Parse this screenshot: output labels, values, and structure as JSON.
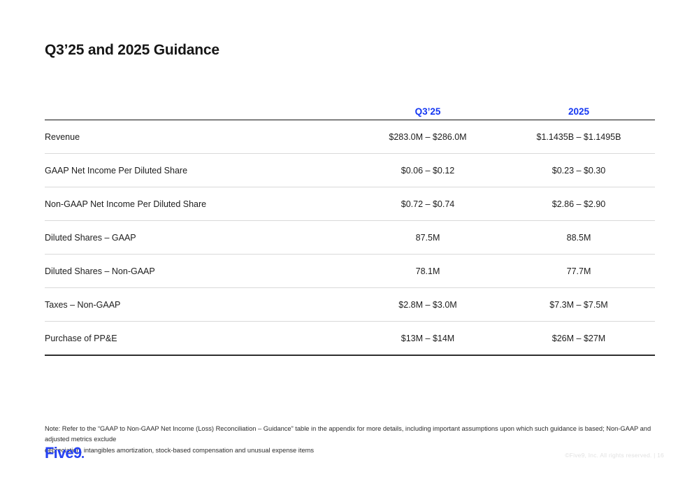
{
  "slide": {
    "title": "Q3’25 and 2025 Guidance",
    "table": {
      "columns": [
        "Q3’25",
        "2025"
      ],
      "rows": [
        {
          "label": "Revenue",
          "q3": "$283.0M – $286.0M",
          "fy": "$1.1435B – $1.1495B"
        },
        {
          "label": "GAAP Net Income Per Diluted Share",
          "q3": "$0.06 – $0.12",
          "fy": "$0.23 – $0.30"
        },
        {
          "label": "Non-GAAP Net Income Per Diluted Share",
          "q3": "$0.72 – $0.74",
          "fy": "$2.86 – $2.90"
        },
        {
          "label": "Diluted Shares – GAAP",
          "q3": "87.5M",
          "fy": "88.5M"
        },
        {
          "label": "Diluted Shares – Non-GAAP",
          "q3": "78.1M",
          "fy": "77.7M"
        },
        {
          "label": "Taxes – Non-GAAP",
          "q3": "$2.8M – $3.0M",
          "fy": "$7.3M – $7.5M"
        },
        {
          "label": "Purchase of PP&E",
          "q3": "$13M – $14M",
          "fy": "$26M – $27M"
        }
      ]
    },
    "note_lines": [
      "Note: Refer to the “GAAP to Non-GAAP Net Income (Loss) Reconciliation – Guidance” table in the appendix for more details, including important assumptions upon which such guidance is based; Non-GAAP and adjusted metrics exclude",
      "depreciation, intangibles amortization, stock-based compensation and unusual expense items"
    ],
    "footer": {
      "logo_text": "Five9",
      "copyright": "©Five9, Inc. All rights reserved. | 16"
    },
    "colors": {
      "accent_blue": "#1437f2",
      "logo_blue": "#2743f2",
      "row_divider": "#d9d9d9",
      "table_border_dark": "#2e2e2e"
    }
  }
}
